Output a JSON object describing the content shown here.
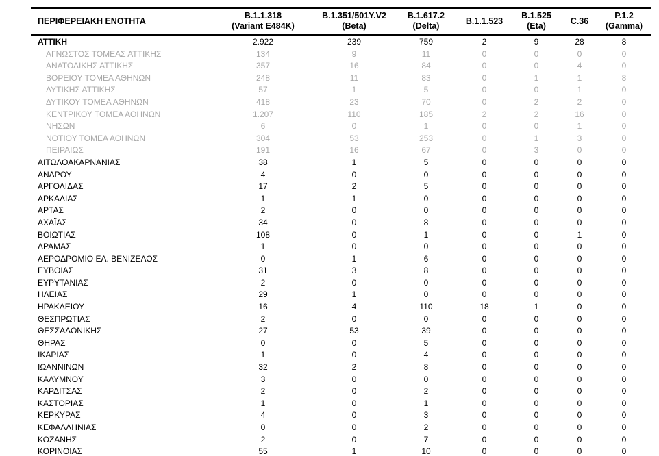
{
  "colors": {
    "background": "#ffffff",
    "text": "#000000",
    "muted_row_text": "#a8a8a8",
    "border": "#000000"
  },
  "table": {
    "region_header": "ΠΕΡΙΦΕΡΕΙΑΚΗ ΕΝΟΤΗΤΑ",
    "columns": [
      {
        "label": "B.1.1.318",
        "sublabel": "(Variant E484K)"
      },
      {
        "label": "B.1.351/501Y.V2",
        "sublabel": "(Beta)"
      },
      {
        "label": "B.1.617.2",
        "sublabel": "(Delta)"
      },
      {
        "label": "B.1.1.523",
        "sublabel": ""
      },
      {
        "label": "B.1.525",
        "sublabel": "(Eta)"
      },
      {
        "label": "C.36",
        "sublabel": ""
      },
      {
        "label": "P.1.2",
        "sublabel": "(Gamma)"
      }
    ],
    "rows": [
      {
        "name": "ΑΤΤΙΚΗ",
        "style": "total",
        "values": [
          "2.922",
          "239",
          "759",
          "2",
          "9",
          "28",
          "8"
        ]
      },
      {
        "name": "ΑΓΝΩΣΤΟΣ ΤΟΜΕΑΣ ΑΤΤΙΚΗΣ",
        "style": "sub",
        "values": [
          "134",
          "9",
          "11",
          "0",
          "0",
          "0",
          "0"
        ]
      },
      {
        "name": "ΑΝΑΤΟΛΙΚΗΣ ΑΤΤΙΚΗΣ",
        "style": "sub",
        "values": [
          "357",
          "16",
          "84",
          "0",
          "0",
          "4",
          "0"
        ]
      },
      {
        "name": "ΒΟΡΕΙΟΥ ΤΟΜΕΑ ΑΘΗΝΩΝ",
        "style": "sub",
        "values": [
          "248",
          "11",
          "83",
          "0",
          "1",
          "1",
          "8"
        ]
      },
      {
        "name": "ΔΥΤΙΚΗΣ ΑΤΤΙΚΗΣ",
        "style": "sub",
        "values": [
          "57",
          "1",
          "5",
          "0",
          "0",
          "1",
          "0"
        ]
      },
      {
        "name": "ΔΥΤΙΚΟΥ ΤΟΜΕΑ ΑΘΗΝΩΝ",
        "style": "sub",
        "values": [
          "418",
          "23",
          "70",
          "0",
          "2",
          "2",
          "0"
        ]
      },
      {
        "name": "ΚΕΝΤΡΙΚΟΥ ΤΟΜΕΑ ΑΘΗΝΩΝ",
        "style": "sub",
        "values": [
          "1.207",
          "110",
          "185",
          "2",
          "2",
          "16",
          "0"
        ]
      },
      {
        "name": "ΝΗΣΩΝ",
        "style": "sub",
        "values": [
          "6",
          "0",
          "1",
          "0",
          "0",
          "1",
          "0"
        ]
      },
      {
        "name": "ΝΟΤΙΟΥ ΤΟΜΕΑ ΑΘΗΝΩΝ",
        "style": "sub",
        "values": [
          "304",
          "53",
          "253",
          "0",
          "1",
          "3",
          "0"
        ]
      },
      {
        "name": "ΠΕΙΡΑΙΩΣ",
        "style": "sub",
        "values": [
          "191",
          "16",
          "67",
          "0",
          "3",
          "0",
          "0"
        ]
      },
      {
        "name": "ΑΙΤΩΛΟΑΚΑΡΝΑΝΙΑΣ",
        "style": "normal",
        "values": [
          "38",
          "1",
          "5",
          "0",
          "0",
          "0",
          "0"
        ]
      },
      {
        "name": "ΑΝΔΡΟΥ",
        "style": "normal",
        "values": [
          "4",
          "0",
          "0",
          "0",
          "0",
          "0",
          "0"
        ]
      },
      {
        "name": "ΑΡΓΟΛΙΔΑΣ",
        "style": "normal",
        "values": [
          "17",
          "2",
          "5",
          "0",
          "0",
          "0",
          "0"
        ]
      },
      {
        "name": "ΑΡΚΑΔΙΑΣ",
        "style": "normal",
        "values": [
          "1",
          "1",
          "0",
          "0",
          "0",
          "0",
          "0"
        ]
      },
      {
        "name": "ΑΡΤΑΣ",
        "style": "normal",
        "values": [
          "2",
          "0",
          "0",
          "0",
          "0",
          "0",
          "0"
        ]
      },
      {
        "name": "ΑΧΑΪΑΣ",
        "style": "normal",
        "values": [
          "34",
          "0",
          "8",
          "0",
          "0",
          "0",
          "0"
        ]
      },
      {
        "name": "ΒΟΙΩΤΙΑΣ",
        "style": "normal",
        "values": [
          "108",
          "0",
          "1",
          "0",
          "0",
          "1",
          "0"
        ]
      },
      {
        "name": "ΔΡΑΜΑΣ",
        "style": "normal",
        "values": [
          "1",
          "0",
          "0",
          "0",
          "0",
          "0",
          "0"
        ]
      },
      {
        "name": "ΑΕΡΟΔΡΟΜΙΟ ΕΛ. ΒΕΝΙΖΕΛΟΣ",
        "style": "normal",
        "values": [
          "0",
          "1",
          "6",
          "0",
          "0",
          "0",
          "0"
        ]
      },
      {
        "name": "ΕΥΒΟΙΑΣ",
        "style": "normal",
        "values": [
          "31",
          "3",
          "8",
          "0",
          "0",
          "0",
          "0"
        ]
      },
      {
        "name": "ΕΥΡΥΤΑΝΙΑΣ",
        "style": "normal",
        "values": [
          "2",
          "0",
          "0",
          "0",
          "0",
          "0",
          "0"
        ]
      },
      {
        "name": "ΗΛΕΙΑΣ",
        "style": "normal",
        "values": [
          "29",
          "1",
          "0",
          "0",
          "0",
          "0",
          "0"
        ]
      },
      {
        "name": "ΗΡΑΚΛΕΙΟΥ",
        "style": "normal",
        "values": [
          "16",
          "4",
          "110",
          "18",
          "1",
          "0",
          "0"
        ]
      },
      {
        "name": "ΘΕΣΠΡΩΤΙΑΣ",
        "style": "normal",
        "values": [
          "2",
          "0",
          "0",
          "0",
          "0",
          "0",
          "0"
        ]
      },
      {
        "name": "ΘΕΣΣΑΛΟΝΙΚΗΣ",
        "style": "normal",
        "values": [
          "27",
          "53",
          "39",
          "0",
          "0",
          "0",
          "0"
        ]
      },
      {
        "name": "ΘΗΡΑΣ",
        "style": "normal",
        "values": [
          "0",
          "0",
          "5",
          "0",
          "0",
          "0",
          "0"
        ]
      },
      {
        "name": "ΙΚΑΡΙΑΣ",
        "style": "normal",
        "values": [
          "1",
          "0",
          "4",
          "0",
          "0",
          "0",
          "0"
        ]
      },
      {
        "name": "ΙΩΑΝΝΙΝΩΝ",
        "style": "normal",
        "values": [
          "32",
          "2",
          "8",
          "0",
          "0",
          "0",
          "0"
        ]
      },
      {
        "name": "ΚΑΛΥΜΝΟΥ",
        "style": "normal",
        "values": [
          "3",
          "0",
          "0",
          "0",
          "0",
          "0",
          "0"
        ]
      },
      {
        "name": "ΚΑΡΔΙΤΣΑΣ",
        "style": "normal",
        "values": [
          "2",
          "0",
          "2",
          "0",
          "0",
          "0",
          "0"
        ]
      },
      {
        "name": "ΚΑΣΤΟΡΙΑΣ",
        "style": "normal",
        "values": [
          "1",
          "0",
          "1",
          "0",
          "0",
          "0",
          "0"
        ]
      },
      {
        "name": "ΚΕΡΚΥΡΑΣ",
        "style": "normal",
        "values": [
          "4",
          "0",
          "3",
          "0",
          "0",
          "0",
          "0"
        ]
      },
      {
        "name": "ΚΕΦΑΛΛΗΝΙΑΣ",
        "style": "normal",
        "values": [
          "0",
          "0",
          "2",
          "0",
          "0",
          "0",
          "0"
        ]
      },
      {
        "name": "ΚΟΖΑΝΗΣ",
        "style": "normal",
        "values": [
          "2",
          "0",
          "7",
          "0",
          "0",
          "0",
          "0"
        ]
      },
      {
        "name": "ΚΟΡΙΝΘΙΑΣ",
        "style": "normal",
        "values": [
          "55",
          "1",
          "10",
          "0",
          "0",
          "0",
          "0"
        ]
      }
    ]
  }
}
